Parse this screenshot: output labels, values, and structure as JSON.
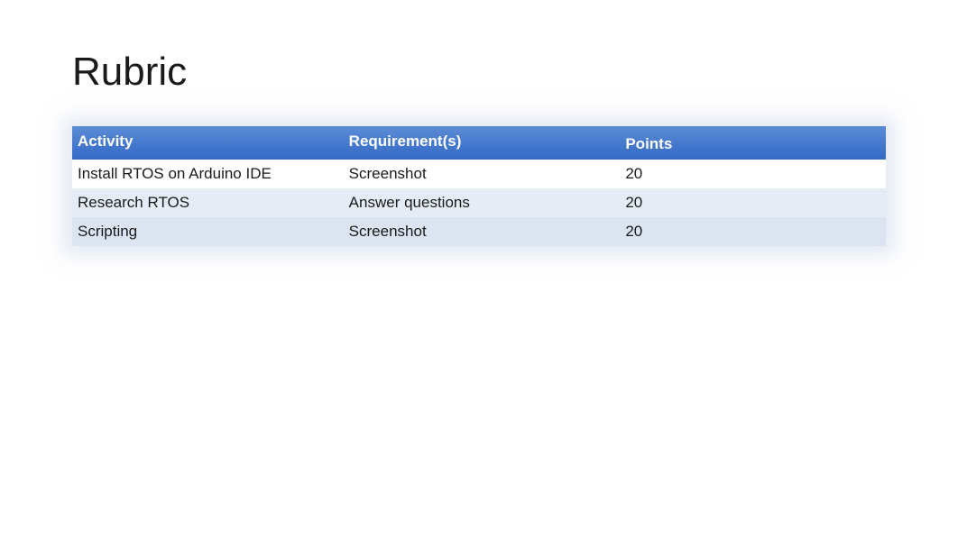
{
  "title": "Rubric",
  "table": {
    "columns": [
      "Activity",
      "Requirement(s)",
      "Points"
    ],
    "rows": [
      [
        "Install RTOS on Arduino IDE",
        "Screenshot",
        "20"
      ],
      [
        "Research RTOS",
        "Answer questions",
        "20"
      ],
      [
        "Scripting",
        "Screenshot",
        "20"
      ]
    ],
    "header_bg_gradient_top": "#5b8cd6",
    "header_bg_gradient_bottom": "#3469c6",
    "header_text_color": "#ffffff",
    "row_colors": [
      "#ffffff",
      "#e6ecf5",
      "#dbe4f0"
    ],
    "text_color": "#1a1a1a",
    "title_fontsize": 44,
    "header_fontsize": 17,
    "cell_fontsize": 17,
    "column_widths": [
      "34%",
      "34%",
      "32%"
    ],
    "shadow_color": "rgba(200,210,230,0.5)"
  }
}
